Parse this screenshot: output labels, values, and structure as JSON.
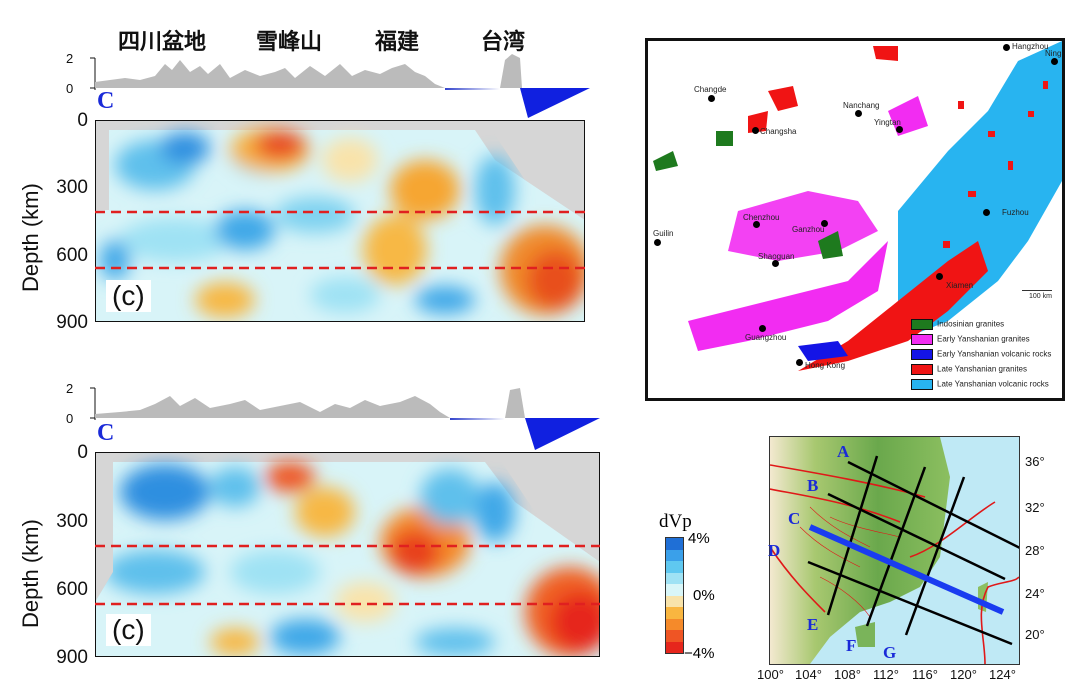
{
  "top_panel": {
    "regions": [
      "四川盆地",
      "雪峰山",
      "福建",
      "台湾"
    ],
    "topo_ticks": [
      "2",
      "0"
    ],
    "profile_label": "C",
    "depth_label": "Depth (km)",
    "depth_ticks": [
      "0",
      "300",
      "600",
      "900"
    ],
    "panel_tag": "(c)"
  },
  "bottom_panel": {
    "topo_ticks": [
      "2",
      "0"
    ],
    "profile_label": "C",
    "depth_label": "Depth (km)",
    "depth_ticks": [
      "0",
      "300",
      "600",
      "900"
    ],
    "panel_tag": "(c)"
  },
  "colorbar": {
    "title": "dVp",
    "labels": [
      "4%",
      "0%",
      "−4%"
    ],
    "colors": [
      "#1f6fd6",
      "#3aa0ea",
      "#5fc8f0",
      "#9fe2f4",
      "#d9f6f8",
      "#f8e3aa",
      "#f9b640",
      "#f58a2a",
      "#ef5524",
      "#e6261c"
    ]
  },
  "granite_map": {
    "cities": [
      "Hangzhou",
      "Ningbo",
      "Changde",
      "Changsha",
      "Nanchang",
      "Yingtan",
      "Fuzhou",
      "Chenzhou",
      "Ganzhou",
      "Guilin",
      "Shaoguan",
      "Xiamen",
      "Guangzhou",
      "Hong Kong"
    ],
    "scale_bar": "100 km",
    "legend": [
      {
        "label": "Indosinian granites",
        "color": "#1e7a1e"
      },
      {
        "label": "Early Yanshanian granites",
        "color": "#f22cf2"
      },
      {
        "label": "Early Yanshanian volcanic rocks",
        "color": "#1414e6"
      },
      {
        "label": "Late Yanshanian granites",
        "color": "#f01414"
      },
      {
        "label": "Late Yanshanian volcanic rocks",
        "color": "#28b4f0"
      }
    ]
  },
  "location_map": {
    "profiles": [
      "A",
      "B",
      "C",
      "D",
      "E",
      "F",
      "G"
    ],
    "lon_ticks": [
      "100°",
      "104°",
      "108°",
      "112°",
      "116°",
      "120°",
      "124°"
    ],
    "lat_ticks": [
      "36°",
      "32°",
      "28°",
      "24°",
      "20°"
    ]
  }
}
